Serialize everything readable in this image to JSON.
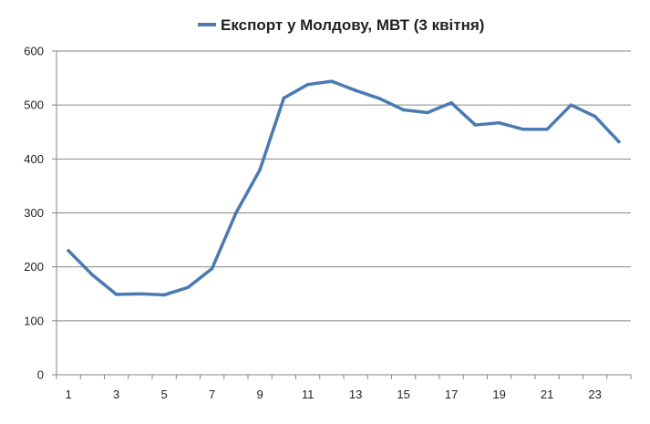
{
  "chart_data": {
    "type": "line",
    "title": "",
    "xlabel": "",
    "ylabel": "",
    "ylim": [
      0,
      600
    ],
    "y_ticks": [
      0,
      100,
      200,
      300,
      400,
      500,
      600
    ],
    "x_tick_labels": [
      "1",
      "3",
      "5",
      "7",
      "9",
      "11",
      "13",
      "15",
      "17",
      "19",
      "21",
      "23"
    ],
    "grid": "horizontal",
    "legend_position": "top",
    "x": [
      1,
      2,
      3,
      4,
      5,
      6,
      7,
      8,
      9,
      10,
      11,
      12,
      13,
      14,
      15,
      16,
      17,
      18,
      19,
      20,
      21,
      22,
      23,
      24
    ],
    "series": [
      {
        "name": "Експорт у  Молдову, МВТ (3 квітня)",
        "color": "#4a7ab0",
        "values": [
          230,
          185,
          149,
          150,
          148,
          162,
          197,
          300,
          380,
          513,
          538,
          544,
          527,
          512,
          491,
          486,
          504,
          463,
          467,
          455,
          455,
          500,
          479,
          432
        ]
      }
    ]
  }
}
